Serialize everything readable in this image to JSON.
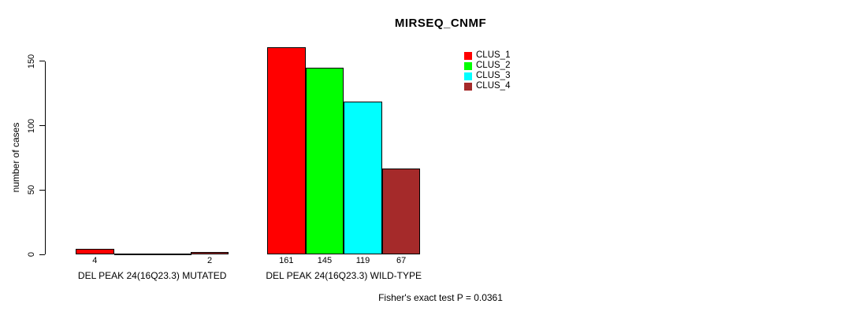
{
  "title": "MIRSEQ_CNMF",
  "footer": "Fisher's exact test P = 0.0361",
  "y_axis": {
    "label": "number of cases",
    "ticks": [
      0,
      50,
      100,
      150
    ]
  },
  "chart_data": {
    "type": "bar",
    "title": "MIRSEQ_CNMF",
    "xlabel": "",
    "ylabel": "number of cases",
    "ylim": [
      0,
      161
    ],
    "yticks": [
      0,
      50,
      100,
      150
    ],
    "grid": false,
    "legend_position": "top-right",
    "categories": [
      "DEL PEAK 24(16Q23.3) MUTATED",
      "DEL PEAK 24(16Q23.3) WILD-TYPE"
    ],
    "series": [
      {
        "name": "CLUS_1",
        "color": "#FF0000",
        "values": [
          4,
          161
        ]
      },
      {
        "name": "CLUS_2",
        "color": "#00FF00",
        "values": [
          0,
          145
        ]
      },
      {
        "name": "CLUS_3",
        "color": "#00FFFF",
        "values": [
          0,
          119
        ]
      },
      {
        "name": "CLUS_4",
        "color": "#A52A2A",
        "values": [
          2,
          67
        ]
      }
    ],
    "bar_value_labels": {
      "mutated": [
        4,
        null,
        null,
        2
      ],
      "wild_type": [
        161,
        145,
        119,
        67
      ]
    },
    "annotation": "Fisher's exact test P = 0.0361"
  }
}
